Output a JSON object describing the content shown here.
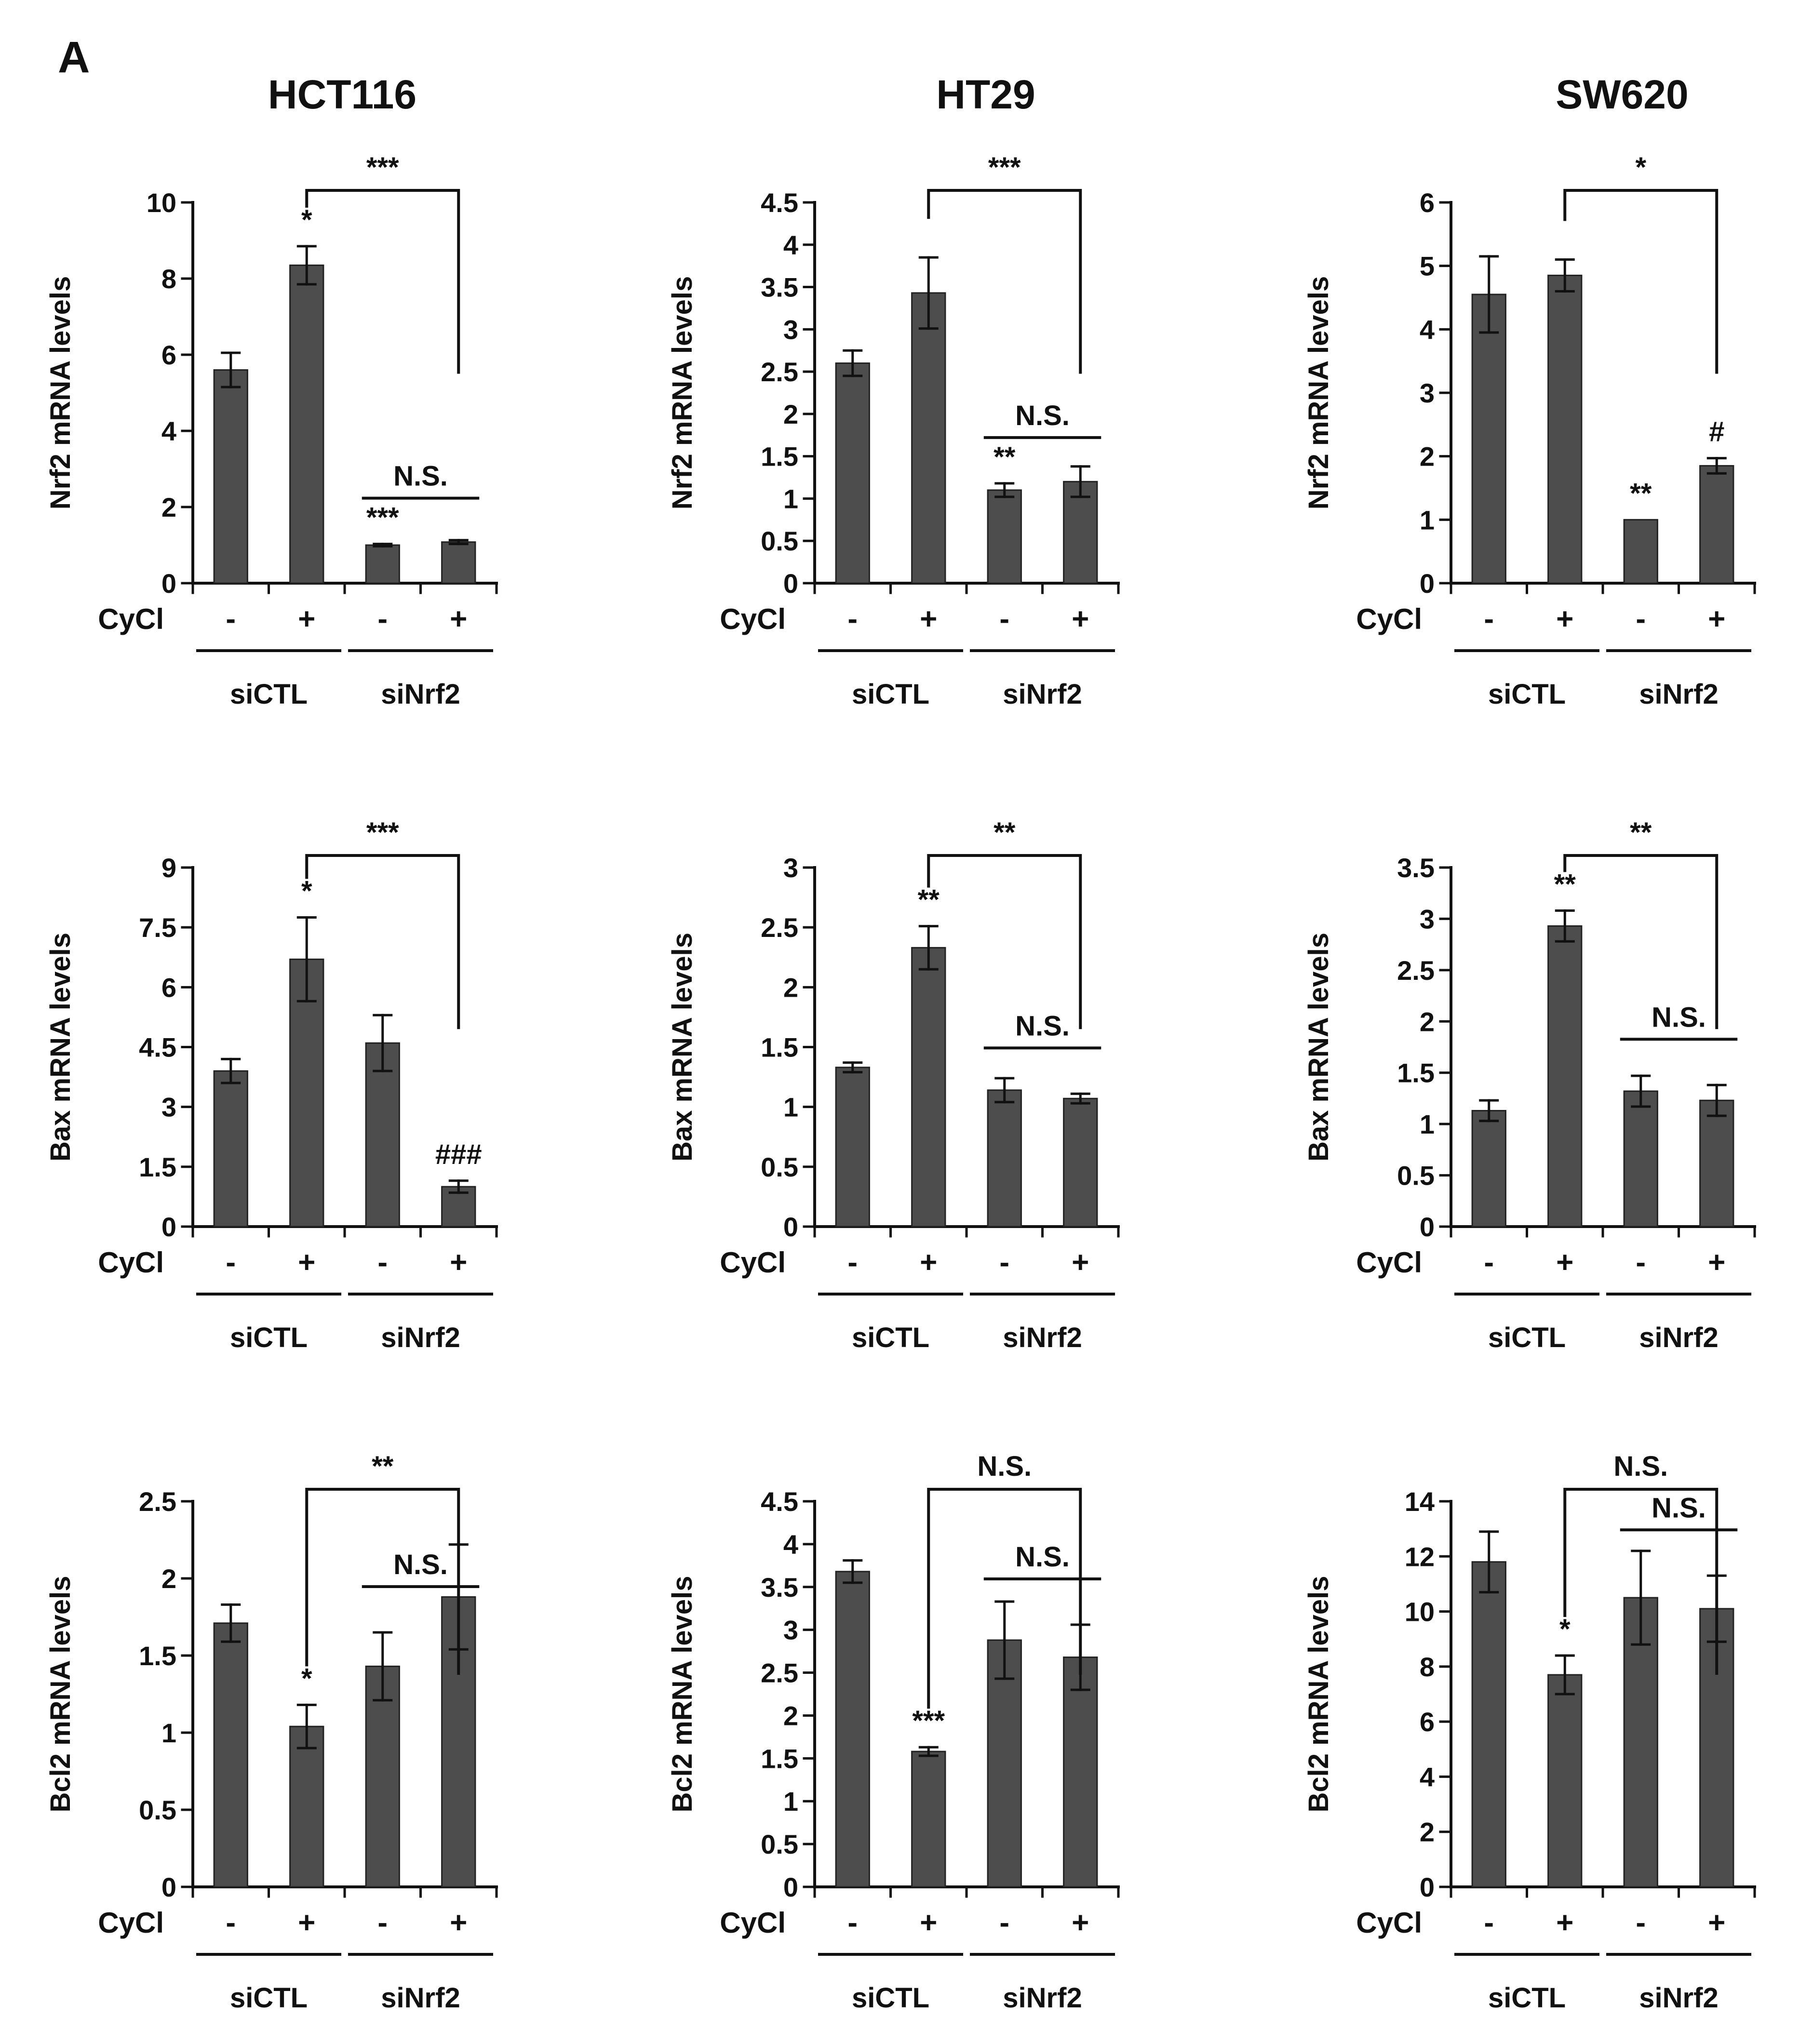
{
  "panel_label": "A",
  "column_titles": [
    "HCT116",
    "HT29",
    "SW620"
  ],
  "colors": {
    "bar": "#4d4d4d",
    "axis": "#111111",
    "text": "#111111"
  },
  "chart_data": [
    {
      "type": "bar",
      "title": "HCT116",
      "ylabel": "Nrf2 mRNA levels",
      "categories": [
        "siCTL -",
        "siCTL +",
        "siNrf2 -",
        "siNrf2 +"
      ],
      "values": [
        5.6,
        8.35,
        1.0,
        1.08
      ],
      "errors": [
        0.45,
        0.5,
        0.03,
        0.05
      ],
      "ylim": [
        0,
        10
      ],
      "yticks": [
        "0",
        "2",
        "4",
        "6",
        "8",
        "10"
      ],
      "bar_labels": [
        "",
        "*",
        "***",
        ""
      ],
      "brackets": [
        {
          "from": 1,
          "to": 3,
          "label": "***",
          "type": "long"
        },
        {
          "from": 2,
          "to": 3,
          "label": "N.S.",
          "type": "line"
        }
      ],
      "condition_label": "CyCl",
      "conditions": [
        "-",
        "+",
        "-",
        "+"
      ],
      "groups": [
        "siCTL",
        "siNrf2"
      ]
    },
    {
      "type": "bar",
      "title": "HT29",
      "ylabel": "Nrf2 mRNA levels",
      "categories": [
        "siCTL -",
        "siCTL +",
        "siNrf2 -",
        "siNrf2 +"
      ],
      "values": [
        2.6,
        3.43,
        1.1,
        1.2
      ],
      "errors": [
        0.15,
        0.42,
        0.08,
        0.18
      ],
      "ylim": [
        0,
        4.5
      ],
      "yticks": [
        "0",
        "0.5",
        "1",
        "1.5",
        "2",
        "2.5",
        "3",
        "3.5",
        "4",
        "4.5"
      ],
      "bar_labels": [
        "",
        "",
        "**",
        ""
      ],
      "brackets": [
        {
          "from": 1,
          "to": 3,
          "label": "***",
          "type": "long"
        },
        {
          "from": 2,
          "to": 3,
          "label": "N.S.",
          "type": "line"
        }
      ],
      "condition_label": "CyCl",
      "conditions": [
        "-",
        "+",
        "-",
        "+"
      ],
      "groups": [
        "siCTL",
        "siNrf2"
      ]
    },
    {
      "type": "bar",
      "title": "SW620",
      "ylabel": "Nrf2 mRNA levels",
      "categories": [
        "siCTL -",
        "siCTL +",
        "siNrf2 -",
        "siNrf2 +"
      ],
      "values": [
        4.55,
        4.85,
        1.0,
        1.85
      ],
      "errors": [
        0.6,
        0.25,
        0.0,
        0.12
      ],
      "ylim": [
        0,
        6
      ],
      "yticks": [
        "0",
        "1",
        "2",
        "3",
        "4",
        "5",
        "6"
      ],
      "bar_labels": [
        "",
        "",
        "**",
        "#"
      ],
      "brackets": [
        {
          "from": 1,
          "to": 3,
          "label": "*",
          "type": "long"
        }
      ],
      "condition_label": "CyCl",
      "conditions": [
        "-",
        "+",
        "-",
        "+"
      ],
      "groups": [
        "siCTL",
        "siNrf2"
      ]
    },
    {
      "type": "bar",
      "title": "",
      "ylabel": "Bax mRNA levels",
      "categories": [
        "siCTL -",
        "siCTL +",
        "siNrf2 -",
        "siNrf2 +"
      ],
      "values": [
        3.9,
        6.7,
        4.6,
        1.0
      ],
      "errors": [
        0.3,
        1.05,
        0.7,
        0.15
      ],
      "ylim": [
        0,
        9
      ],
      "yticks": [
        "0",
        "1.5",
        "3",
        "4.5",
        "6",
        "7.5",
        "9"
      ],
      "bar_labels": [
        "",
        "*",
        "",
        "###"
      ],
      "brackets": [
        {
          "from": 1,
          "to": 3,
          "label": "***",
          "type": "long"
        }
      ],
      "condition_label": "CyCl",
      "conditions": [
        "-",
        "+",
        "-",
        "+"
      ],
      "groups": [
        "siCTL",
        "siNrf2"
      ]
    },
    {
      "type": "bar",
      "title": "",
      "ylabel": "Bax mRNA levels",
      "categories": [
        "siCTL -",
        "siCTL +",
        "siNrf2 -",
        "siNrf2 +"
      ],
      "values": [
        1.33,
        2.33,
        1.14,
        1.07
      ],
      "errors": [
        0.04,
        0.18,
        0.1,
        0.04
      ],
      "ylim": [
        0,
        3
      ],
      "yticks": [
        "0",
        "0.5",
        "1",
        "1.5",
        "2",
        "2.5",
        "3"
      ],
      "bar_labels": [
        "",
        "**",
        "",
        ""
      ],
      "brackets": [
        {
          "from": 1,
          "to": 3,
          "label": "**",
          "type": "long"
        },
        {
          "from": 2,
          "to": 3,
          "label": "N.S.",
          "type": "line"
        }
      ],
      "condition_label": "CyCl",
      "conditions": [
        "-",
        "+",
        "-",
        "+"
      ],
      "groups": [
        "siCTL",
        "siNrf2"
      ]
    },
    {
      "type": "bar",
      "title": "",
      "ylabel": "Bax mRNA levels",
      "categories": [
        "siCTL -",
        "siCTL +",
        "siNrf2 -",
        "siNrf2 +"
      ],
      "values": [
        1.13,
        2.93,
        1.32,
        1.23
      ],
      "errors": [
        0.1,
        0.15,
        0.15,
        0.15
      ],
      "ylim": [
        0,
        3.5
      ],
      "yticks": [
        "0",
        "0.5",
        "1",
        "1.5",
        "2",
        "2.5",
        "3",
        "3.5"
      ],
      "bar_labels": [
        "",
        "**",
        "",
        ""
      ],
      "brackets": [
        {
          "from": 1,
          "to": 3,
          "label": "**",
          "type": "long"
        },
        {
          "from": 2,
          "to": 3,
          "label": "N.S.",
          "type": "line"
        }
      ],
      "condition_label": "CyCl",
      "conditions": [
        "-",
        "+",
        "-",
        "+"
      ],
      "groups": [
        "siCTL",
        "siNrf2"
      ]
    },
    {
      "type": "bar",
      "title": "",
      "ylabel": "Bcl2 mRNA levels",
      "categories": [
        "siCTL -",
        "siCTL +",
        "siNrf2 -",
        "siNrf2 +"
      ],
      "values": [
        1.71,
        1.04,
        1.43,
        1.88
      ],
      "errors": [
        0.12,
        0.14,
        0.22,
        0.34
      ],
      "ylim": [
        0,
        2.5
      ],
      "yticks": [
        "0",
        "0.5",
        "1",
        "1.5",
        "2",
        "2.5"
      ],
      "bar_labels": [
        "",
        "*",
        "",
        ""
      ],
      "brackets": [
        {
          "from": 1,
          "to": 3,
          "label": "**",
          "type": "long"
        },
        {
          "from": 2,
          "to": 3,
          "label": "N.S.",
          "type": "line"
        }
      ],
      "condition_label": "CyCl",
      "conditions": [
        "-",
        "+",
        "-",
        "+"
      ],
      "groups": [
        "siCTL",
        "siNrf2"
      ]
    },
    {
      "type": "bar",
      "title": "",
      "ylabel": "Bcl2 mRNA levels",
      "categories": [
        "siCTL -",
        "siCTL +",
        "siNrf2 -",
        "siNrf2 +"
      ],
      "values": [
        3.68,
        1.58,
        2.88,
        2.68
      ],
      "errors": [
        0.13,
        0.05,
        0.45,
        0.38
      ],
      "ylim": [
        0,
        4.5
      ],
      "yticks": [
        "0",
        "0.5",
        "1",
        "1.5",
        "2",
        "2.5",
        "3",
        "3.5",
        "4",
        "4.5"
      ],
      "bar_labels": [
        "",
        "***",
        "",
        ""
      ],
      "brackets": [
        {
          "from": 1,
          "to": 3,
          "label": "N.S.",
          "type": "long"
        },
        {
          "from": 2,
          "to": 3,
          "label": "N.S.",
          "type": "line"
        }
      ],
      "condition_label": "CyCl",
      "conditions": [
        "-",
        "+",
        "-",
        "+"
      ],
      "groups": [
        "siCTL",
        "siNrf2"
      ]
    },
    {
      "type": "bar",
      "title": "",
      "ylabel": "Bcl2 mRNA levels",
      "categories": [
        "siCTL -",
        "siCTL +",
        "siNrf2 -",
        "siNrf2 +"
      ],
      "values": [
        11.8,
        7.7,
        10.5,
        10.1
      ],
      "errors": [
        1.1,
        0.7,
        1.7,
        1.2
      ],
      "ylim": [
        0,
        14
      ],
      "yticks": [
        "0",
        "2",
        "4",
        "6",
        "8",
        "10",
        "12",
        "14"
      ],
      "bar_labels": [
        "",
        "*",
        "",
        ""
      ],
      "brackets": [
        {
          "from": 1,
          "to": 3,
          "label": "N.S.",
          "type": "long"
        },
        {
          "from": 2,
          "to": 3,
          "label": "N.S.",
          "type": "line"
        }
      ],
      "condition_label": "CyCl",
      "conditions": [
        "-",
        "+",
        "-",
        "+"
      ],
      "groups": [
        "siCTL",
        "siNrf2"
      ]
    }
  ]
}
